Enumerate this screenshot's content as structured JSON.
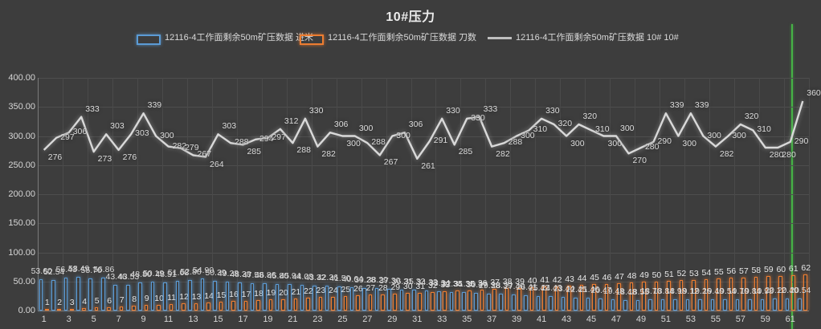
{
  "title": "10#压力",
  "legend": [
    {
      "label": "12116-4工作面剩余50m矿压数据 进米",
      "type": "bar",
      "color": "#5b9bd5"
    },
    {
      "label": "12116-4工作面剩余50m矿压数据 刀数",
      "type": "bar",
      "color": "#ed7d31"
    },
    {
      "label": "12116-4工作面剩余50m矿压数据 10# 10#",
      "type": "line",
      "color": "#bfbfbf"
    }
  ],
  "colors": {
    "background": "#3d3d3d",
    "gridline": "#4a4a4a",
    "axis_text": "#d6d6d6",
    "blue_series": "#5b9bd5",
    "orange_series": "#ed7d31",
    "line_series": "#d9d9d9",
    "green_marker": "#46b246"
  },
  "chart_data": {
    "type": "bar",
    "subtype": "combo-bar-line",
    "title": "10#压力",
    "xlabel": "",
    "ylabel": "",
    "ylim": [
      0,
      400
    ],
    "grid": true,
    "legend_position": "top",
    "y_tick_labels": [
      "0.00",
      "50.00",
      "100.00",
      "150.00",
      "200.00",
      "250.00",
      "300.00",
      "350.00",
      "400.00"
    ],
    "x_tick_labels": [
      "1",
      "3",
      "5",
      "7",
      "9",
      "11",
      "13",
      "15",
      "17",
      "19",
      "21",
      "23",
      "25",
      "27",
      "29",
      "31",
      "33",
      "35",
      "37",
      "39",
      "41",
      "43",
      "45",
      "47",
      "49",
      "51",
      "53",
      "55",
      "57",
      "59",
      "61"
    ],
    "categories": [
      1,
      2,
      3,
      4,
      5,
      6,
      7,
      8,
      9,
      10,
      11,
      12,
      13,
      14,
      15,
      16,
      17,
      18,
      19,
      20,
      21,
      22,
      23,
      24,
      25,
      26,
      27,
      28,
      29,
      30,
      31,
      32,
      33,
      34,
      35,
      36,
      37,
      38,
      39,
      40,
      41,
      42,
      43,
      44,
      45,
      46,
      47,
      48,
      49,
      50,
      51,
      52,
      53,
      54,
      55,
      56,
      57,
      58,
      59,
      60,
      61,
      62
    ],
    "series": [
      {
        "name": "12116-4工作面剩余50m矿压数据 进米",
        "type": "bar",
        "color": "#5b9bd5",
        "values": [
          53.6,
          52.54,
          56.43,
          58.49,
          55.7,
          56.86,
          43.46,
          43.53,
          48.8,
          50.19,
          48.51,
          51.68,
          52.8,
          54.9,
          50.39,
          49.28,
          48.38,
          47.58,
          46.86,
          45.8,
          45.94,
          44.08,
          43.32,
          42.36,
          41.5,
          40.64,
          39.28,
          38.29,
          37.3,
          36.31,
          35.32,
          34.33,
          33.34,
          32.35,
          31.36,
          30.37,
          29.38,
          28.39,
          27.4,
          26.41,
          25.42,
          24.43,
          23.44,
          22.45,
          21.46,
          20.47,
          19.48,
          18.48,
          18.55,
          18.7,
          18.84,
          18.98,
          19.12,
          19.26,
          19.4,
          19.54,
          19.7,
          19.84,
          19.98,
          20.12,
          20.4,
          20.54
        ]
      },
      {
        "name": "12116-4工作面剩余50m矿压数据 刀数",
        "type": "bar",
        "color": "#ed7d31",
        "values": [
          1,
          2,
          3,
          4,
          5,
          6,
          7,
          8,
          9,
          10,
          11,
          12,
          13,
          14,
          15,
          16,
          17,
          18,
          19,
          20,
          21,
          22,
          23,
          24,
          25,
          26,
          27,
          28,
          29,
          30,
          31,
          32,
          33,
          34,
          35,
          36,
          37,
          38,
          39,
          40,
          41,
          42,
          43,
          44,
          45,
          46,
          47,
          48,
          49,
          50,
          51,
          52,
          53,
          54,
          55,
          56,
          57,
          58,
          59,
          60,
          61,
          62
        ]
      },
      {
        "name": "12116-4工作面剩余50m矿压数据 10# 10#",
        "type": "line",
        "color": "#d9d9d9",
        "values": [
          276,
          297,
          306,
          333,
          273,
          303,
          276,
          303,
          339,
          300,
          282,
          279,
          267,
          264,
          303,
          288,
          285,
          294,
          297,
          312,
          288,
          330,
          282,
          306,
          300,
          300,
          288,
          267,
          300,
          306,
          261,
          291,
          330,
          285,
          330,
          333,
          282,
          288,
          300,
          310,
          330,
          320,
          300,
          320,
          310,
          300,
          300,
          270,
          280,
          290,
          339,
          300,
          339,
          300,
          282,
          300,
          320,
          310,
          280,
          280,
          290,
          360
        ]
      }
    ],
    "annotations": [
      {
        "type": "vline",
        "label": "green-marker",
        "x_category": 61.4,
        "color": "#46b246"
      }
    ]
  }
}
